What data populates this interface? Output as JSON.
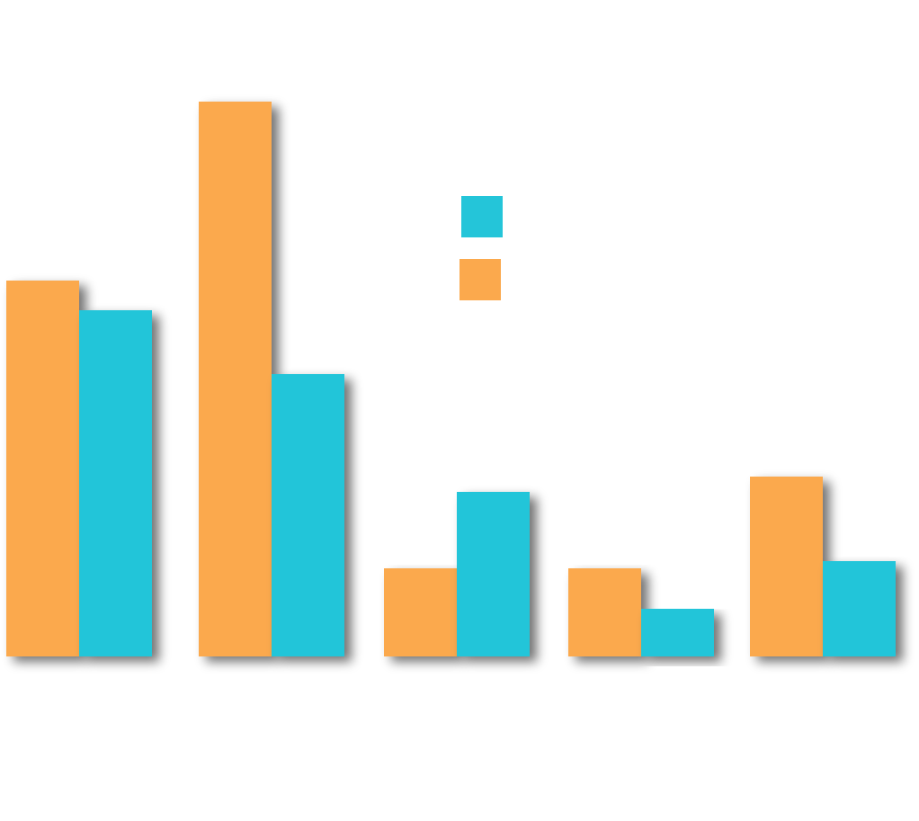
{
  "colors": {
    "background": "#ffffff",
    "series_a": "#fba94d",
    "series_b": "#24c5d9",
    "shadow": "#8a8a8a"
  },
  "chart_data": {
    "type": "bar",
    "title": "",
    "xlabel": "",
    "ylabel": "",
    "categories": [
      "",
      "",
      "",
      "",
      ""
    ],
    "series": [
      {
        "values": [
          41.8,
          61.7,
          9.8,
          9.8,
          20.0
        ]
      },
      {
        "values": [
          38.5,
          31.4,
          18.3,
          5.3,
          10.6
        ]
      }
    ],
    "ylim": [
      0,
      70
    ],
    "grid": false,
    "axes_visible": false,
    "legend": {
      "placement": "top-center",
      "entries": [
        "",
        ""
      ]
    }
  }
}
